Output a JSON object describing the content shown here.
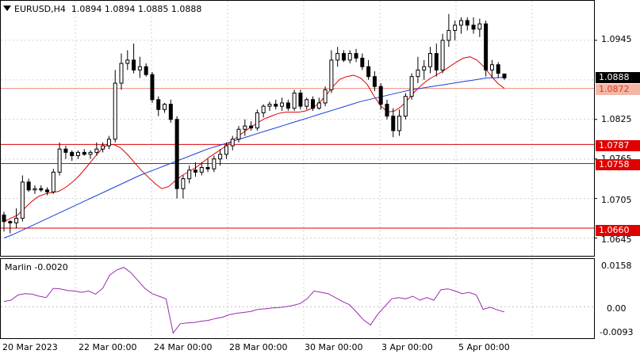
{
  "header": {
    "menu_icon": "triangle-down-icon",
    "symbol": "EURUSD,H4",
    "ohlc": "1.0894 1.0894 1.0885 1.0888"
  },
  "indicator": {
    "label": "Marlin -0.0020",
    "levels": [
      "0.0158",
      "0.00",
      "-0.0093"
    ]
  },
  "price_axis": {
    "ticks": [
      "1.0945",
      "1.0825",
      "1.0765",
      "1.0705",
      "1.0645"
    ],
    "current_price": "1.0888",
    "level_labels": [
      "1.0872",
      "1.0787",
      "1.0758",
      "1.0660"
    ]
  },
  "time_axis": {
    "labels": [
      "20 Mar 2023",
      "22 Mar 00:00",
      "24 Mar 00:00",
      "28 Mar 00:00",
      "30 Mar 00:00",
      "3 Apr 00:00",
      "5 Apr 00:00"
    ]
  },
  "colors": {
    "level_line": "#e00000",
    "ma_fast": "#e00000",
    "ma_slow": "#1a3fd8",
    "marlin": "#9a2bb0",
    "candle": "#000000",
    "grid": "#d0d0d0"
  },
  "chart_data": {
    "type": "candlestick",
    "symbol": "EURUSD",
    "timeframe": "H4",
    "ylim": [
      1.0618,
      1.1005
    ],
    "candles": [
      [
        1.068,
        1.0685,
        1.0655,
        1.067
      ],
      [
        1.067,
        1.0672,
        1.0652,
        1.0668
      ],
      [
        1.0668,
        1.069,
        1.066,
        1.0675
      ],
      [
        1.0675,
        1.074,
        1.067,
        1.073
      ],
      [
        1.073,
        1.0735,
        1.0715,
        1.0718
      ],
      [
        1.0718,
        1.0725,
        1.0712,
        1.072
      ],
      [
        1.072,
        1.0725,
        1.0715,
        1.0718
      ],
      [
        1.0718,
        1.0722,
        1.071,
        1.0715
      ],
      [
        1.0715,
        1.075,
        1.0712,
        1.0745
      ],
      [
        1.0745,
        1.079,
        1.074,
        1.078
      ],
      [
        1.078,
        1.0785,
        1.0765,
        1.0775
      ],
      [
        1.0775,
        1.0778,
        1.0762,
        1.077
      ],
      [
        1.077,
        1.0778,
        1.0765,
        1.0775
      ],
      [
        1.0775,
        1.078,
        1.077,
        1.0772
      ],
      [
        1.0772,
        1.0778,
        1.0765,
        1.0775
      ],
      [
        1.0775,
        1.079,
        1.077,
        1.078
      ],
      [
        1.078,
        1.079,
        1.0775,
        1.0785
      ],
      [
        1.0785,
        1.08,
        1.078,
        1.0795
      ],
      [
        1.0795,
        1.09,
        1.079,
        1.088
      ],
      [
        1.088,
        1.0925,
        1.087,
        1.091
      ],
      [
        1.091,
        1.093,
        1.09,
        1.0915
      ],
      [
        1.0915,
        1.094,
        1.0895,
        1.09
      ],
      [
        1.09,
        1.092,
        1.0888,
        1.0905
      ],
      [
        1.0905,
        1.091,
        1.089,
        1.0893
      ],
      [
        1.0893,
        1.0897,
        1.085,
        1.0855
      ],
      [
        1.0855,
        1.086,
        1.083,
        1.084
      ],
      [
        1.084,
        1.085,
        1.0835,
        1.0848
      ],
      [
        1.0848,
        1.0855,
        1.082,
        1.0825
      ],
      [
        1.0825,
        1.083,
        1.0705,
        1.072
      ],
      [
        1.072,
        1.074,
        1.0705,
        1.0735
      ],
      [
        1.0735,
        1.0755,
        1.0728,
        1.0748
      ],
      [
        1.0748,
        1.076,
        1.0738,
        1.0745
      ],
      [
        1.0745,
        1.076,
        1.074,
        1.0752
      ],
      [
        1.0752,
        1.0765,
        1.0745,
        1.075
      ],
      [
        1.075,
        1.077,
        1.0745,
        1.0765
      ],
      [
        1.0765,
        1.078,
        1.0755,
        1.0772
      ],
      [
        1.0772,
        1.079,
        1.0765,
        1.0785
      ],
      [
        1.0785,
        1.08,
        1.0778,
        1.0795
      ],
      [
        1.0795,
        1.0815,
        1.079,
        1.081
      ],
      [
        1.081,
        1.0825,
        1.08,
        1.0815
      ],
      [
        1.0815,
        1.0822,
        1.0808,
        1.0812
      ],
      [
        1.0812,
        1.084,
        1.0808,
        1.0835
      ],
      [
        1.0835,
        1.0848,
        1.0828,
        1.0845
      ],
      [
        1.0845,
        1.0852,
        1.0838,
        1.0848
      ],
      [
        1.0848,
        1.0855,
        1.084,
        1.0845
      ],
      [
        1.0845,
        1.0858,
        1.0838,
        1.085
      ],
      [
        1.085,
        1.0855,
        1.0838,
        1.0842
      ],
      [
        1.0842,
        1.087,
        1.0838,
        1.0865
      ],
      [
        1.0865,
        1.087,
        1.084,
        1.0845
      ],
      [
        1.0845,
        1.0858,
        1.084,
        1.0855
      ],
      [
        1.0855,
        1.086,
        1.0838,
        1.0842
      ],
      [
        1.0842,
        1.0858,
        1.084,
        1.085
      ],
      [
        1.085,
        1.0875,
        1.0845,
        1.087
      ],
      [
        1.087,
        1.093,
        1.0865,
        1.0915
      ],
      [
        1.0915,
        1.0935,
        1.0905,
        1.0925
      ],
      [
        1.0925,
        1.093,
        1.0912,
        1.0915
      ],
      [
        1.0915,
        1.093,
        1.091,
        1.0925
      ],
      [
        1.0925,
        1.0932,
        1.0912,
        1.0918
      ],
      [
        1.0918,
        1.0925,
        1.09,
        1.0905
      ],
      [
        1.0905,
        1.0915,
        1.0885,
        1.089
      ],
      [
        1.089,
        1.0898,
        1.0868,
        1.0875
      ],
      [
        1.0875,
        1.088,
        1.084,
        1.0848
      ],
      [
        1.0848,
        1.0855,
        1.0825,
        1.083
      ],
      [
        1.083,
        1.0842,
        1.0798,
        1.0808
      ],
      [
        1.0808,
        1.084,
        1.08,
        1.083
      ],
      [
        1.083,
        1.0865,
        1.0825,
        1.086
      ],
      [
        1.086,
        1.0895,
        1.0855,
        1.089
      ],
      [
        1.089,
        1.092,
        1.088,
        1.09
      ],
      [
        1.09,
        1.0915,
        1.0885,
        1.0905
      ],
      [
        1.0905,
        1.0935,
        1.0895,
        1.0925
      ],
      [
        1.0925,
        1.094,
        1.089,
        1.09
      ],
      [
        1.09,
        1.0955,
        1.0895,
        1.0945
      ],
      [
        1.0945,
        1.0985,
        1.0935,
        1.096
      ],
      [
        1.096,
        1.0975,
        1.0945,
        1.0968
      ],
      [
        1.0968,
        1.098,
        1.0955,
        1.0975
      ],
      [
        1.0975,
        1.098,
        1.096,
        1.0968
      ],
      [
        1.0968,
        1.098,
        1.0955,
        1.0962
      ],
      [
        1.0962,
        1.0978,
        1.095,
        1.097
      ],
      [
        1.097,
        1.0975,
        1.089,
        1.09
      ],
      [
        1.09,
        1.0915,
        1.0888,
        1.0908
      ],
      [
        1.0908,
        1.0912,
        1.0888,
        1.0895
      ],
      [
        1.0894,
        1.0894,
        1.0885,
        1.0888
      ]
    ],
    "ma_fast": [
      1.067,
      1.0675,
      1.068,
      1.069,
      1.07,
      1.0708,
      1.0712,
      1.0714,
      1.0716,
      1.0722,
      1.073,
      1.074,
      1.0752,
      1.0765,
      1.0777,
      1.0786,
      1.0787,
      1.0782,
      1.0772,
      1.076,
      1.0748,
      1.0738,
      1.0728,
      1.072,
      1.0723,
      1.0732,
      1.074,
      1.0746,
      1.0752,
      1.076,
      1.0768,
      1.0775,
      1.0782,
      1.079,
      1.0798,
      1.0806,
      1.0813,
      1.082,
      1.0826,
      1.083,
      1.0834,
      1.0836,
      1.0836,
      1.0836,
      1.0838,
      1.0842,
      1.085,
      1.0862,
      1.0875,
      1.0886,
      1.089,
      1.0892,
      1.0888,
      1.0878,
      1.086,
      1.0845,
      1.0836,
      1.0838,
      1.0845,
      1.0856,
      1.0868,
      1.0878,
      1.0886,
      1.0892,
      1.0898,
      1.0905,
      1.0912,
      1.0918,
      1.092,
      1.0915,
      1.0905,
      1.0892,
      1.088,
      1.0872
    ],
    "ma_slow": [
      1.0645,
      1.065,
      1.0656,
      1.0662,
      1.0668,
      1.0674,
      1.068,
      1.0686,
      1.0692,
      1.0698,
      1.0704,
      1.071,
      1.0716,
      1.0722,
      1.0728,
      1.0734,
      1.074,
      1.0745,
      1.075,
      1.0755,
      1.076,
      1.0765,
      1.077,
      1.0775,
      1.078,
      1.0784,
      1.0788,
      1.0792,
      1.0796,
      1.08,
      1.0804,
      1.0808,
      1.0812,
      1.0816,
      1.082,
      1.0824,
      1.0828,
      1.0832,
      1.0836,
      1.084,
      1.0844,
      1.0848,
      1.0852,
      1.0855,
      1.0858,
      1.0861,
      1.0864,
      1.0867,
      1.087,
      1.0872,
      1.0874,
      1.0876,
      1.0878,
      1.088,
      1.0882,
      1.0884,
      1.0886,
      1.0888,
      1.0888,
      1.0889
    ],
    "levels": [
      1.0872,
      1.0787,
      1.0758,
      1.066
    ],
    "marlin": {
      "ylim": [
        -0.012,
        0.0182
      ],
      "values": [
        0.002,
        0.0025,
        0.0045,
        0.005,
        0.0048,
        0.004,
        0.0035,
        0.007,
        0.0068,
        0.0062,
        0.006,
        0.0055,
        0.006,
        0.0048,
        0.007,
        0.012,
        0.014,
        0.015,
        0.013,
        0.01,
        0.007,
        0.005,
        0.004,
        0.003,
        -0.01,
        -0.0065,
        -0.0062,
        -0.006,
        -0.0055,
        -0.0052,
        -0.0045,
        -0.004,
        -0.003,
        -0.0025,
        -0.0022,
        -0.0018,
        -0.001,
        -0.0008,
        -0.0005,
        -0.0003,
        0.0,
        0.0005,
        0.0012,
        0.003,
        0.006,
        0.0055,
        0.005,
        0.0035,
        0.002,
        0.0008,
        -0.002,
        -0.005,
        -0.007,
        -0.003,
        0.0,
        0.003,
        0.0035,
        0.003,
        0.004,
        0.0025,
        0.0035,
        0.0025,
        0.0065,
        0.0068,
        0.006,
        0.005,
        0.0055,
        0.0045,
        -0.001,
        -0.0002,
        -0.0012,
        -0.002
      ]
    }
  }
}
